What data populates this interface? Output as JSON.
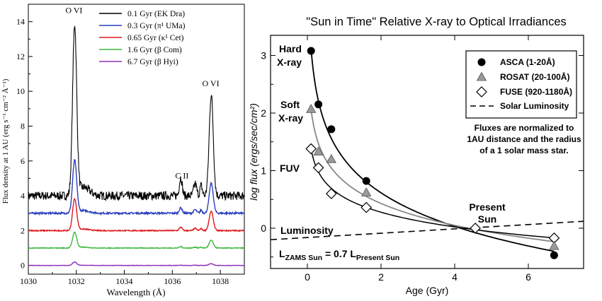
{
  "chart_data": [
    {
      "type": "line",
      "xlabel": "Wavelength (Å)",
      "ylabel": "Flux density at 1 AU (erg s⁻¹ cm⁻² Å⁻¹)",
      "xlim": [
        1030,
        1039
      ],
      "ylim": [
        -0.5,
        15
      ],
      "xticks": [
        1030,
        1032,
        1034,
        1036,
        1038
      ],
      "yticks": [
        0,
        2,
        4,
        6,
        8,
        10,
        12,
        14
      ],
      "annotations": [
        {
          "text": "O VI",
          "x": 1031.9,
          "y": 14.5
        },
        {
          "text": "O VI",
          "x": 1037.6,
          "y": 10.3
        },
        {
          "text": "C II",
          "x": 1036.4,
          "y": 5.0
        }
      ],
      "legend_position": "top-right",
      "series": [
        {
          "name": "0.1 Gyr (EK Dra)",
          "color": "#000000",
          "baseline": 4.0,
          "peak1": 13.7,
          "peak2": 9.8,
          "noise": 0.25
        },
        {
          "name": "0.3 Gyr (π¹ UMa)",
          "color": "#2b3fbf",
          "baseline": 3.0,
          "peak1": 6.0,
          "peak2": 4.7,
          "noise": 0.05
        },
        {
          "name": "0.65 Gyr (κ¹ Cet)",
          "color": "#e0191b",
          "baseline": 2.0,
          "peak1": 3.8,
          "peak2": 3.1,
          "noise": 0.03
        },
        {
          "name": "1.6 Gyr (β Com)",
          "color": "#3cb83c",
          "baseline": 1.0,
          "peak1": 1.9,
          "peak2": 1.45,
          "noise": 0.02
        },
        {
          "name": "6.7 Gyr (β Hyi)",
          "color": "#8b2fb8",
          "baseline": 0.0,
          "peak1": 0.2,
          "peak2": 0.1,
          "noise": 0.01
        }
      ]
    },
    {
      "type": "scatter",
      "title": "\"Sun in Time\" Relative X-ray to Optical Irradiances",
      "xlabel": "Age (Gyr)",
      "ylabel": "log flux (ergs/sec/cm²)",
      "xlim": [
        -1,
        7.5
      ],
      "ylim": [
        -0.7,
        3.35
      ],
      "xticks": [
        0,
        2,
        4,
        6
      ],
      "yticks": [
        0,
        1,
        2,
        3
      ],
      "legend_position": "top-right",
      "legend_note": "Fluxes are normalized to 1AU distance and the radius of a 1 solar mass star.",
      "series": [
        {
          "name": "ASCA (1-20Å)",
          "marker": "filled-circle",
          "x": [
            0.1,
            0.3,
            0.65,
            1.6,
            6.7
          ],
          "y": [
            3.08,
            2.15,
            1.72,
            0.82,
            -0.47
          ]
        },
        {
          "name": "ROSAT (20-100Å)",
          "marker": "gray-triangle",
          "x": [
            0.1,
            0.3,
            0.65,
            1.6,
            6.7
          ],
          "y": [
            2.07,
            1.33,
            1.2,
            0.62,
            -0.31
          ]
        },
        {
          "name": "FUSE (920-1180Å)",
          "marker": "open-diamond",
          "x": [
            0.1,
            0.3,
            0.65,
            1.6,
            4.56,
            6.7
          ],
          "y": [
            1.38,
            1.05,
            0.6,
            0.36,
            0.0,
            -0.17
          ]
        },
        {
          "name": "Solar Luminosity",
          "marker": "dashed-line",
          "x": [
            -1,
            7.5
          ],
          "y": [
            -0.2,
            0.12
          ]
        }
      ],
      "labels": {
        "hard_xray": [
          "Hard",
          "X-ray"
        ],
        "soft_xray": [
          "Soft",
          "X-ray"
        ],
        "fuv": "FUV",
        "present_sun": [
          "Present",
          "Sun"
        ],
        "luminosity": "Luminosity",
        "zams": {
          "l1": "L",
          "sub1": "ZAMS Sun",
          "mid": " = 0.7 L",
          "sub2": "Present Sun"
        }
      }
    }
  ]
}
